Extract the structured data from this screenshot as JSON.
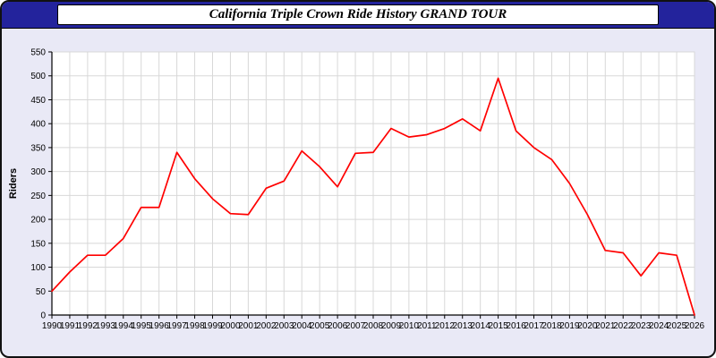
{
  "window": {
    "title": "California Triple Crown Ride History GRAND TOUR"
  },
  "colors": {
    "titlebar_bg": "#23239c",
    "title_box_bg": "#ffffff",
    "window_bg": "#e9e9f6",
    "plot_bg": "#ffffff",
    "gridline": "#d8d8d8",
    "axis": "#000000",
    "line": "#ff0000"
  },
  "chart_data": {
    "type": "line",
    "title": "California Triple Crown Ride History GRAND TOUR",
    "xlabel": "",
    "ylabel": "Riders",
    "ylim": [
      0,
      550
    ],
    "ytick_step": 50,
    "grid": true,
    "legend": false,
    "x": [
      1990,
      1991,
      1992,
      1993,
      1994,
      1995,
      1996,
      1997,
      1998,
      1999,
      2000,
      2001,
      2002,
      2003,
      2004,
      2005,
      2006,
      2007,
      2008,
      2009,
      2010,
      2011,
      2012,
      2013,
      2014,
      2015,
      2016,
      2017,
      2018,
      2019,
      2020,
      2021,
      2022,
      2023,
      2024,
      2025,
      2026
    ],
    "series": [
      {
        "name": "Riders",
        "color": "#ff0000",
        "values": [
          50,
          90,
          125,
          125,
          160,
          225,
          225,
          340,
          285,
          243,
          212,
          210,
          265,
          280,
          343,
          310,
          268,
          338,
          340,
          390,
          372,
          377,
          390,
          410,
          385,
          495,
          385,
          350,
          325,
          275,
          210,
          135,
          130,
          82,
          130,
          125,
          0
        ]
      }
    ]
  }
}
